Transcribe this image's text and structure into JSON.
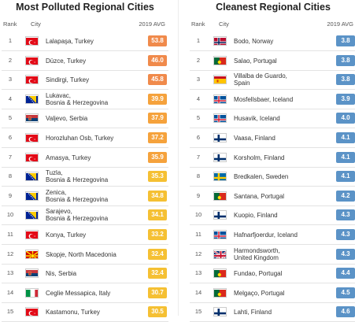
{
  "chart_data": [
    {
      "type": "table",
      "title": "Most Polluted Regional Cities",
      "columns": [
        "Rank",
        "City",
        "2019 AVG"
      ],
      "rows": [
        {
          "rank": "1",
          "city": "Lalapaşa, Turkey",
          "value": 53.8,
          "flag": "turkey",
          "color": "#f08a4b"
        },
        {
          "rank": "2",
          "city": "Düzce, Turkey",
          "value": 46.0,
          "flag": "turkey",
          "color": "#f08a4b"
        },
        {
          "rank": "3",
          "city": "Sindirgi, Turkey",
          "value": 45.8,
          "flag": "turkey",
          "color": "#f08a4b"
        },
        {
          "rank": "4",
          "city": "Lukavac, Bosnia & Herzegovina",
          "value": 39.9,
          "flag": "bosnia",
          "color": "#f5a23c"
        },
        {
          "rank": "5",
          "city": "Valjevo, Serbia",
          "value": 37.9,
          "flag": "serbia",
          "color": "#f5a23c"
        },
        {
          "rank": "6",
          "city": "Horozluhan Osb, Turkey",
          "value": 37.2,
          "flag": "turkey",
          "color": "#f5a23c"
        },
        {
          "rank": "7",
          "city": "Amasya, Turkey",
          "value": 35.9,
          "flag": "turkey",
          "color": "#f5a23c"
        },
        {
          "rank": "8",
          "city": "Tuzla, Bosnia & Herzegovina",
          "value": 35.3,
          "flag": "bosnia",
          "color": "#f5c033"
        },
        {
          "rank": "9",
          "city": "Zenica, Bosnia & Herzegovina",
          "value": 34.8,
          "flag": "bosnia",
          "color": "#f5c033"
        },
        {
          "rank": "10",
          "city": "Sarajevo, Bosnia & Herzegovina",
          "value": 34.1,
          "flag": "bosnia",
          "color": "#f5c033"
        },
        {
          "rank": "11",
          "city": "Konya, Turkey",
          "value": 33.2,
          "flag": "turkey",
          "color": "#f5c033"
        },
        {
          "rank": "12",
          "city": "Skopje, North Macedonia",
          "value": 32.4,
          "flag": "macedonia",
          "color": "#f5c033"
        },
        {
          "rank": "13",
          "city": "Nis, Serbia",
          "value": 32.4,
          "flag": "serbia",
          "color": "#f5c033"
        },
        {
          "rank": "14",
          "city": "Ceglie Messapica, Italy",
          "value": 30.7,
          "flag": "italy",
          "color": "#f5c033"
        },
        {
          "rank": "15",
          "city": "Kastamonu, Turkey",
          "value": 30.5,
          "flag": "turkey",
          "color": "#f5c033"
        }
      ]
    },
    {
      "type": "table",
      "title": "Cleanest Regional Cities",
      "columns": [
        "Rank",
        "City",
        "2019 AVG"
      ],
      "rows": [
        {
          "rank": "1",
          "city": "Bodo, Norway",
          "value": 3.8,
          "flag": "norway",
          "color": "#5b93c7"
        },
        {
          "rank": "2",
          "city": "Salao, Portugal",
          "value": 3.8,
          "flag": "portugal",
          "color": "#5b93c7"
        },
        {
          "rank": "3",
          "city": "Villalba de Guardo, Spain",
          "value": 3.8,
          "flag": "spain",
          "color": "#5b93c7"
        },
        {
          "rank": "4",
          "city": "Mosfellsbaer, Iceland",
          "value": 3.9,
          "flag": "iceland",
          "color": "#5b93c7"
        },
        {
          "rank": "5",
          "city": "Husavik, Iceland",
          "value": 4.0,
          "flag": "iceland",
          "color": "#5b93c7"
        },
        {
          "rank": "6",
          "city": "Vaasa, Finland",
          "value": 4.1,
          "flag": "finland",
          "color": "#5b93c7"
        },
        {
          "rank": "7",
          "city": "Korsholm, Finland",
          "value": 4.1,
          "flag": "finland",
          "color": "#5b93c7"
        },
        {
          "rank": "8",
          "city": "Bredkalen, Sweden",
          "value": 4.1,
          "flag": "sweden",
          "color": "#5b93c7"
        },
        {
          "rank": "9",
          "city": "Santana, Portugal",
          "value": 4.2,
          "flag": "portugal",
          "color": "#5b93c7"
        },
        {
          "rank": "10",
          "city": "Kuopio, Finland",
          "value": 4.3,
          "flag": "finland",
          "color": "#5b93c7"
        },
        {
          "rank": "11",
          "city": "Hafnarfjoerdur, Iceland",
          "value": 4.3,
          "flag": "iceland",
          "color": "#5b93c7"
        },
        {
          "rank": "12",
          "city": "Harmondsworth, United Kingdom",
          "value": 4.3,
          "flag": "uk",
          "color": "#5b93c7"
        },
        {
          "rank": "13",
          "city": "Fundao, Portugal",
          "value": 4.4,
          "flag": "portugal",
          "color": "#5b93c7"
        },
        {
          "rank": "14",
          "city": "Melgaço, Portugal",
          "value": 4.5,
          "flag": "portugal",
          "color": "#5b93c7"
        },
        {
          "rank": "15",
          "city": "Lahti, Finland",
          "value": 4.6,
          "flag": "finland",
          "color": "#5b93c7"
        }
      ]
    }
  ]
}
